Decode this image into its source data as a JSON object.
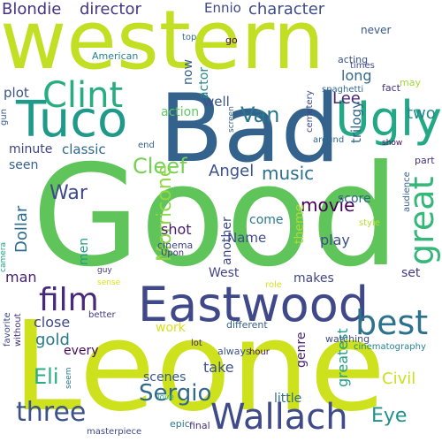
{
  "words": [
    {
      "text": "Good",
      "color": "#5fc459"
    },
    {
      "text": "Leone",
      "color": "#cde11d"
    },
    {
      "text": "Bad",
      "color": "#33628d"
    },
    {
      "text": "western",
      "color": "#c2df23"
    },
    {
      "text": "Eastwood",
      "color": "#3f4889"
    },
    {
      "text": "Tuco",
      "color": "#1f9a8a"
    },
    {
      "text": "Ugly",
      "color": "#22a884"
    },
    {
      "text": "Clint",
      "color": "#27ad81"
    },
    {
      "text": "Wallach",
      "color": "#3e4a89"
    },
    {
      "text": "three",
      "color": "#3b528b"
    },
    {
      "text": "film",
      "color": "#482878"
    },
    {
      "text": "best",
      "color": "#2c728e"
    },
    {
      "text": "great",
      "color": "#35b779"
    },
    {
      "text": "Sergio",
      "color": "#31688e"
    },
    {
      "text": "Van",
      "color": "#2a788e"
    },
    {
      "text": "Cleef",
      "color": "#75d054"
    },
    {
      "text": "Blondie",
      "color": "#46337f"
    },
    {
      "text": "director",
      "color": "#453882"
    },
    {
      "text": "character",
      "color": "#3e4c8a"
    },
    {
      "text": "Ennio",
      "color": "#3f4788"
    },
    {
      "text": "Lee",
      "color": "#482576"
    },
    {
      "text": "long",
      "color": "#31688e"
    },
    {
      "text": "two",
      "color": "#23888e"
    },
    {
      "text": "music",
      "color": "#2d708e"
    },
    {
      "text": "movie",
      "color": "#440154"
    },
    {
      "text": "Morricone",
      "color": "#8fd744"
    },
    {
      "text": "Dollar",
      "color": "#2f6b8e"
    },
    {
      "text": "War",
      "color": "#3e4989"
    },
    {
      "text": "Angel",
      "color": "#3b528b"
    },
    {
      "text": "trilogy",
      "color": "#33638d"
    },
    {
      "text": "Eli",
      "color": "#29af7f"
    },
    {
      "text": "Eye",
      "color": "#20928c"
    },
    {
      "text": "gold",
      "color": "#2a788e"
    },
    {
      "text": "Civil",
      "color": "#cae11f"
    },
    {
      "text": "greatest",
      "color": "#1f9e89"
    },
    {
      "text": "shot",
      "color": "#481d6f"
    },
    {
      "text": "close",
      "color": "#404688"
    },
    {
      "text": "scenes",
      "color": "#38588c"
    },
    {
      "text": "Name",
      "color": "#3d4e8a"
    },
    {
      "text": "play",
      "color": "#3e4c8a"
    },
    {
      "text": "man",
      "color": "#482173"
    },
    {
      "text": "plot",
      "color": "#3b528b"
    },
    {
      "text": "classic",
      "color": "#31688e"
    },
    {
      "text": "seen",
      "color": "#355f8d"
    },
    {
      "text": "minute",
      "color": "#404588"
    },
    {
      "text": "score",
      "color": "#31678e"
    },
    {
      "text": "actor",
      "color": "#24868e"
    },
    {
      "text": "action",
      "color": "#5ec962"
    },
    {
      "text": "well",
      "color": "#3b528b"
    },
    {
      "text": "another",
      "color": "#3f4889"
    },
    {
      "text": "makes",
      "color": "#414487"
    },
    {
      "text": "West",
      "color": "#414487"
    },
    {
      "text": "set",
      "color": "#443983"
    },
    {
      "text": "come",
      "color": "#2a788e"
    },
    {
      "text": "theme",
      "color": "#addc30"
    },
    {
      "text": "men",
      "color": "#1f9e89"
    },
    {
      "text": "work",
      "color": "#d8e219"
    },
    {
      "text": "every",
      "color": "#460a5d"
    },
    {
      "text": "take",
      "color": "#3b528b"
    },
    {
      "text": "little",
      "color": "#2e6e8e"
    },
    {
      "text": "genre",
      "color": "#482374"
    },
    {
      "text": "now",
      "color": "#35608d"
    },
    {
      "text": "American",
      "color": "#26828e"
    },
    {
      "text": "never",
      "color": "#38588c"
    },
    {
      "text": "acting",
      "color": "#3b528b"
    },
    {
      "text": "times",
      "color": "#3e4a89"
    },
    {
      "text": "spaghetti",
      "color": "#31688e"
    },
    {
      "text": "fact",
      "color": "#46307e"
    },
    {
      "text": "may",
      "color": "#a2da37"
    },
    {
      "text": "go",
      "color": "#440154"
    },
    {
      "text": "top",
      "color": "#2f6c8e"
    },
    {
      "text": "part",
      "color": "#46317e"
    },
    {
      "text": "audience",
      "color": "#34618d"
    },
    {
      "text": "cemetery",
      "color": "#3e4a89"
    },
    {
      "text": "screen",
      "color": "#34618d"
    },
    {
      "text": "around",
      "color": "#30698e"
    },
    {
      "text": "show",
      "color": "#471063"
    },
    {
      "text": "end",
      "color": "#31668e"
    },
    {
      "text": "gun",
      "color": "#38588c"
    },
    {
      "text": "cinema",
      "color": "#414487"
    },
    {
      "text": "Upon",
      "color": "#46337f"
    },
    {
      "text": "guy",
      "color": "#443983"
    },
    {
      "text": "sense",
      "color": "#dde318"
    },
    {
      "text": "role",
      "color": "#d5e21a"
    },
    {
      "text": "camera",
      "color": "#22a785"
    },
    {
      "text": "style",
      "color": "#b5de2b"
    },
    {
      "text": "cinematography",
      "color": "#26828e"
    },
    {
      "text": "watching",
      "color": "#3e4a89"
    },
    {
      "text": "different",
      "color": "#355f8d"
    },
    {
      "text": "better",
      "color": "#453882"
    },
    {
      "text": "favorite",
      "color": "#3f4889"
    },
    {
      "text": "without",
      "color": "#46337f"
    },
    {
      "text": "lot",
      "color": "#482576"
    },
    {
      "text": "always",
      "color": "#3b528b"
    },
    {
      "text": "seem",
      "color": "#2a788e"
    },
    {
      "text": "hour",
      "color": "#471365"
    },
    {
      "text": "love",
      "color": "#2fb47c"
    },
    {
      "text": "epic",
      "color": "#2a788e"
    },
    {
      "text": "final",
      "color": "#46337f"
    },
    {
      "text": "masterpiece",
      "color": "#3f4889"
    }
  ]
}
